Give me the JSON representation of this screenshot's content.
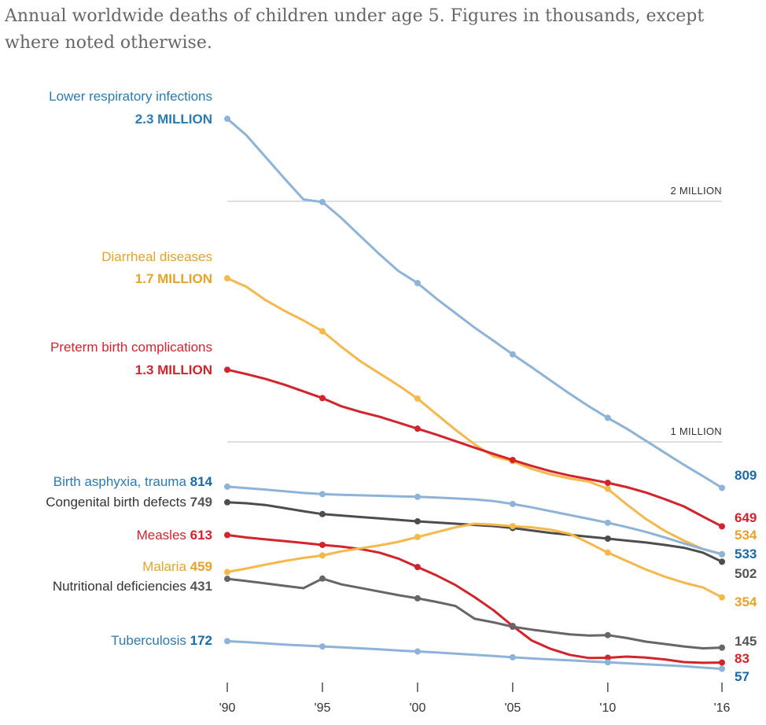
{
  "header": {
    "title": "Annual worldwide deaths of children under age 5. Figures in thousands, except where noted otherwise."
  },
  "chart_data": {
    "type": "line",
    "title": "Annual worldwide deaths of children under age 5. Figures in thousands, except where noted otherwise.",
    "xlabel": "",
    "ylabel": "",
    "x": [
      1990,
      1991,
      1992,
      1993,
      1994,
      1995,
      1996,
      1997,
      1998,
      1999,
      2000,
      2001,
      2002,
      2003,
      2004,
      2005,
      2006,
      2007,
      2008,
      2009,
      2010,
      2011,
      2012,
      2013,
      2014,
      2015,
      2016
    ],
    "marker_years": [
      1990,
      1995,
      2000,
      2005,
      2010,
      2016
    ],
    "x_tick_labels": [
      "'90",
      "'95",
      "'00",
      "'05",
      "'10",
      "'16"
    ],
    "ylim": [
      0,
      2300
    ],
    "reference_lines": [
      {
        "value": 2000,
        "label": "2 MILLION"
      },
      {
        "value": 1000,
        "label": "1 MILLION"
      }
    ],
    "series": [
      {
        "name": "Lower respiratory infections",
        "start_label": "2.3 MILLION",
        "end_label": "809",
        "color": "#8eb3d9",
        "label_color": "#2a7bb3",
        "end_color": "#1a6aa6",
        "values": [
          2343,
          2275,
          2185,
          2095,
          2008,
          1997,
          1930,
          1855,
          1780,
          1710,
          1660,
          1595,
          1535,
          1475,
          1420,
          1364,
          1310,
          1255,
          1200,
          1148,
          1100,
          1055,
          1005,
          955,
          905,
          858,
          809
        ]
      },
      {
        "name": "Diarrheal diseases",
        "start_label": "1.7 MILLION",
        "end_label": "534",
        "color": "#f7b84b",
        "label_color": "#e8a22a",
        "end_color": "#e8a22a",
        "values": [
          1680,
          1645,
          1590,
          1545,
          1505,
          1460,
          1395,
          1335,
          1285,
          1235,
          1180,
          1115,
          1050,
          990,
          940,
          920,
          888,
          865,
          848,
          835,
          805,
          740,
          680,
          630,
          590,
          555,
          534
        ]
      },
      {
        "name": "Preterm birth complications",
        "start_label": "1.3 MILLION",
        "end_label": "649",
        "color": "#d3242c",
        "label_color": "#d3242c",
        "end_color": "#d3242c",
        "values": [
          1300,
          1282,
          1262,
          1238,
          1210,
          1182,
          1148,
          1125,
          1105,
          1080,
          1055,
          1030,
          1003,
          976,
          950,
          925,
          900,
          878,
          860,
          845,
          830,
          812,
          790,
          762,
          732,
          690,
          649
        ]
      },
      {
        "name": "Birth asphyxia, trauma",
        "end_label": "814",
        "end_value_label": "533",
        "color": "#8eb3d9",
        "label_color": "#2a7bb3",
        "end_color": "#1a6aa6",
        "values": [
          814,
          808,
          802,
          795,
          788,
          783,
          780,
          778,
          776,
          774,
          772,
          769,
          765,
          761,
          754,
          742,
          728,
          712,
          696,
          680,
          664,
          646,
          626,
          603,
          578,
          555,
          533
        ]
      },
      {
        "name": "Congenital birth defects",
        "end_label": "749",
        "end_value_label": "502",
        "color": "#4d4d4d",
        "label_color": "#333333",
        "end_color": "#555555",
        "values": [
          749,
          745,
          738,
          725,
          712,
          700,
          694,
          688,
          682,
          676,
          670,
          665,
          660,
          655,
          650,
          642,
          632,
          622,
          614,
          606,
          598,
          590,
          582,
          572,
          560,
          540,
          502
        ]
      },
      {
        "name": "Measles",
        "end_label": "613",
        "end_value_label": "83",
        "color": "#d3242c",
        "label_color": "#d3242c",
        "end_color": "#d3242c",
        "values": [
          613,
          603,
          595,
          588,
          580,
          572,
          565,
          555,
          540,
          515,
          480,
          445,
          405,
          355,
          300,
          235,
          175,
          140,
          115,
          102,
          103,
          108,
          104,
          96,
          85,
          82,
          83
        ]
      },
      {
        "name": "Malaria",
        "end_label": "459",
        "end_value_label": "354",
        "color": "#f7b84b",
        "label_color": "#e8a22a",
        "end_color": "#e8a22a",
        "values": [
          459,
          474,
          490,
          505,
          518,
          528,
          545,
          558,
          570,
          585,
          605,
          625,
          645,
          660,
          656,
          650,
          645,
          635,
          618,
          580,
          540,
          505,
          470,
          440,
          415,
          395,
          354
        ]
      },
      {
        "name": "Nutritional deficiencies",
        "end_label": "431",
        "end_value_label": "145",
        "color": "#666666",
        "label_color": "#333333",
        "end_color": "#555555",
        "values": [
          431,
          422,
          412,
          402,
          392,
          432,
          408,
          393,
          378,
          363,
          350,
          335,
          318,
          265,
          250,
          232,
          220,
          210,
          200,
          195,
          197,
          185,
          170,
          160,
          150,
          142,
          145
        ]
      },
      {
        "name": "Tuberculosis",
        "end_label": "172",
        "end_value_label": "57",
        "color": "#8eb3d9",
        "label_color": "#2a7bb3",
        "end_color": "#1a6aa6",
        "values": [
          172,
          168,
          163,
          158,
          154,
          150,
          146,
          142,
          138,
          133,
          129,
          125,
          120,
          115,
          110,
          105,
          100,
          96,
          92,
          88,
          84,
          80,
          76,
          72,
          68,
          62,
          57
        ]
      }
    ]
  }
}
